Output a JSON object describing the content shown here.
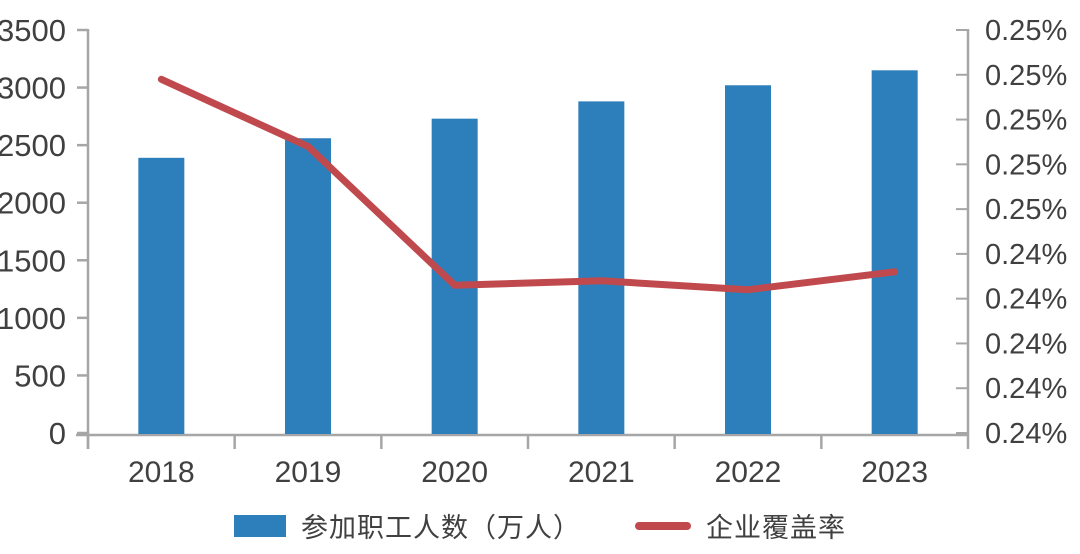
{
  "colors": {
    "bar": "#2d7fbb",
    "line": "#c0494d",
    "axis": "#a6a6a6",
    "text": "#404040",
    "background": "#ffffff"
  },
  "chart_data": {
    "type": "combo-bar-line",
    "title": "",
    "categories": [
      "2018",
      "2019",
      "2020",
      "2021",
      "2022",
      "2023"
    ],
    "series": [
      {
        "name": "参加职工人数（万人）",
        "type": "bar",
        "axis": "left",
        "color": "#2d7fbb",
        "values": [
          2390,
          2560,
          2730,
          2880,
          3020,
          3150
        ]
      },
      {
        "name": "企业覆盖率",
        "type": "line",
        "axis": "right",
        "color": "#c0494d",
        "values": [
          0.2479,
          0.2464,
          0.2433,
          0.2434,
          0.2432,
          0.2436
        ]
      }
    ],
    "left_axis": {
      "min": 0,
      "max": 3500,
      "step": 500,
      "tick_labels": [
        "3500",
        "3000",
        "2500",
        "2000",
        "1500",
        "1000",
        "500",
        "0"
      ]
    },
    "right_axis": {
      "min": 0.24,
      "max": 0.249,
      "unit": "%",
      "tick_labels": [
        "0.25%",
        "0.25%",
        "0.25%",
        "0.25%",
        "0.25%",
        "0.24%",
        "0.24%",
        "0.24%",
        "0.24%",
        "0.24%"
      ]
    },
    "grid": false,
    "legend_position": "bottom"
  },
  "legend": {
    "bar_label": "参加职工人数（万人）",
    "line_label": "企业覆盖率"
  }
}
